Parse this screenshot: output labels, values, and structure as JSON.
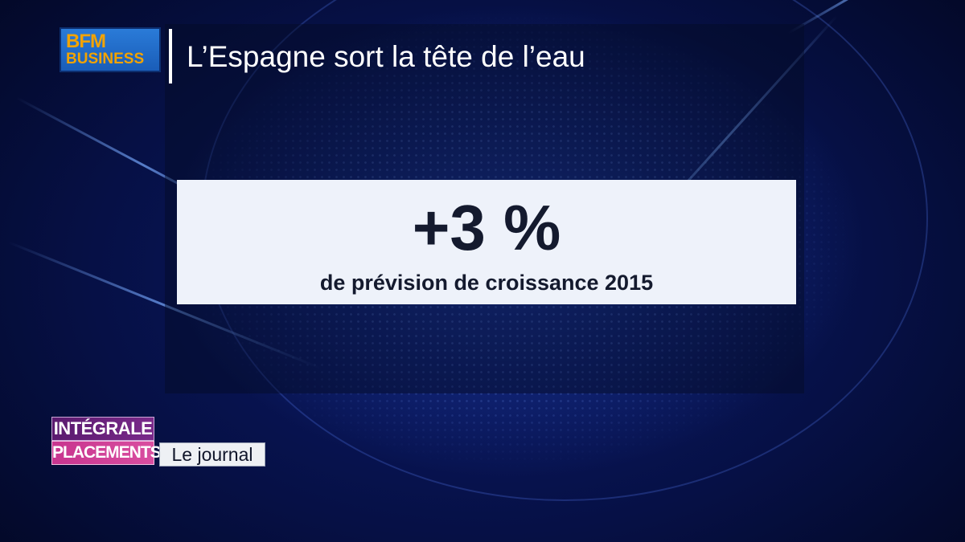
{
  "channel": {
    "logo_line1": "BFM",
    "logo_line2": "BUSINESS",
    "colors": {
      "logo_blue": "#1a5db8",
      "logo_text": "#f2a300"
    }
  },
  "headline": "L’Espagne sort la tête de l’eau",
  "stat": {
    "value": "+3 %",
    "caption": "de prévision de croissance 2015"
  },
  "program": {
    "badge_top": "INTÉGRALE",
    "badge_bottom": "PLACEMENTS",
    "section": "Le journal",
    "colors": {
      "badge_top": "#6a2380",
      "badge_bottom": "#d0408f"
    }
  }
}
